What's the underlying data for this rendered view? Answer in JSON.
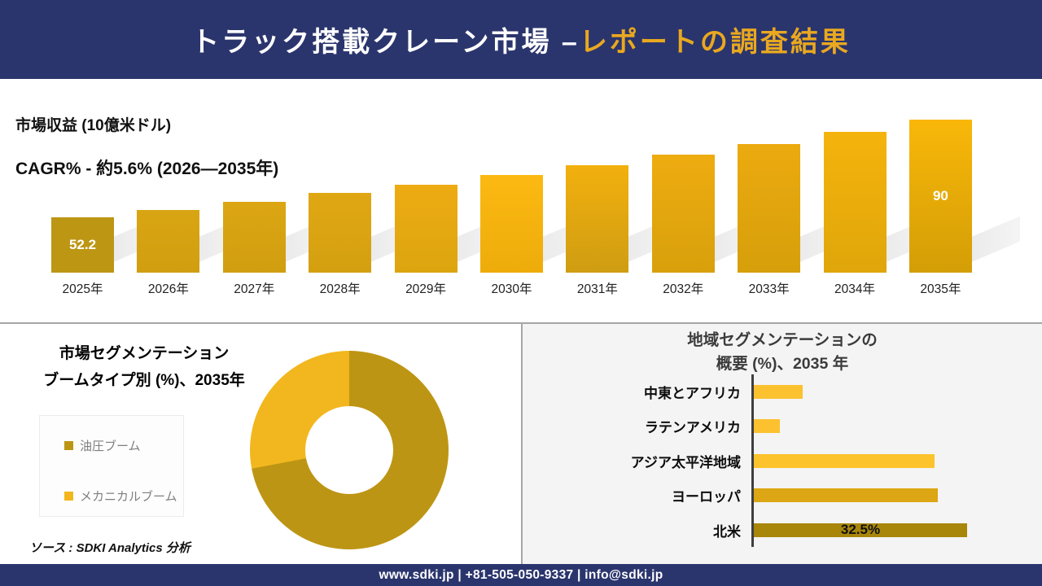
{
  "header": {
    "title_white": "トラック搭載クレーン市場 –",
    "title_gold": "レポートの調査結果"
  },
  "revenue_section": {
    "metric_label": "市場収益 (10億米ドル)",
    "cagr_label": "CAGR% - 約5.6% (2026―2035年)"
  },
  "boom_section": {
    "title_line1": "市場セグメンテーション",
    "title_line2": "ブームタイプ別 (%)、2035年",
    "legend": [
      {
        "label": "油圧ブーム",
        "color": "#bd9514"
      },
      {
        "label": "メカニカルブーム",
        "color": "#f2b71e"
      }
    ],
    "source_note": "ソース : SDKI Analytics 分析"
  },
  "region_section": {
    "title_line1": "地域セグメンテーションの",
    "title_line2": "概要 (%)、2035 年"
  },
  "footer": {
    "contact": "www.sdki.jp | +81-505-050-9337 | info@sdki.jp"
  },
  "colors": {
    "navy": "#2b356d",
    "gold_accent": "#e9a81f",
    "panel_gray": "#f4f4f4",
    "shadow_gray": "#d9d9d9"
  },
  "chart_data": [
    {
      "type": "bar",
      "title": "市場収益 (10億米ドル)",
      "subtitle": "CAGR% - 約5.6% (2026―2035年)",
      "categories": [
        "2025年",
        "2026年",
        "2027年",
        "2028年",
        "2029年",
        "2030年",
        "2031年",
        "2032年",
        "2033年",
        "2034年",
        "2035年"
      ],
      "values": [
        52.2,
        55.1,
        58.2,
        61.5,
        64.9,
        68.5,
        72.4,
        76.4,
        80.7,
        85.2,
        90
      ],
      "data_labels": [
        "52.2",
        "",
        "",
        "",
        "",
        "",
        "",
        "",
        "",
        "",
        "90"
      ],
      "ylabel": "10億米ドル",
      "ylim": [
        0,
        100
      ],
      "grid": false,
      "bar_colors": [
        [
          "#bd9614",
          "#bd9614"
        ],
        [
          "#d9a513",
          "#d09e10"
        ],
        [
          "#dca613",
          "#d09e10"
        ],
        [
          "#e0a713",
          "#d4a010"
        ],
        [
          "#eeab13",
          "#dca50f"
        ],
        [
          "#fcb912",
          "#eeac0b"
        ],
        [
          "#f2b00e",
          "#cf9d12"
        ],
        [
          "#eeac10",
          "#d8a00c"
        ],
        [
          "#ecaa0f",
          "#d69f0b"
        ],
        [
          "#f5b30c",
          "#dfa60a"
        ],
        [
          "#f9b709",
          "#d39e06"
        ]
      ]
    },
    {
      "type": "pie",
      "donut": true,
      "title": "市場セグメンテーション ブームタイプ別 (%)、2035年",
      "labels": [
        "油圧ブーム",
        "メカニカルブーム"
      ],
      "values": [
        72,
        28
      ],
      "colors": [
        "#bd9514",
        "#f2b71e"
      ],
      "legend_position": "left"
    },
    {
      "type": "bar",
      "orientation": "horizontal",
      "title": "地域セグメンテーションの概要 (%)、2035 年",
      "categories": [
        "中東とアフリカ",
        "ラテンアメリカ",
        "アジア太平洋地域",
        "ヨーロッパ",
        "北米"
      ],
      "values": [
        7.5,
        4,
        27.5,
        28,
        32.5
      ],
      "data_labels": [
        "",
        "",
        "",
        "",
        "32.5%"
      ],
      "xlim": [
        0,
        40
      ],
      "grid": false,
      "colors": [
        "#fbc12f",
        "#fbc12f",
        "#fdc32c",
        "#dca614",
        "#a8860a"
      ]
    }
  ]
}
